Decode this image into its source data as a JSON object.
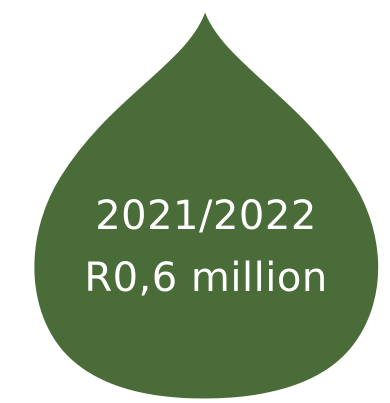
{
  "drop": {
    "fill_color": "#4a6c38",
    "stroke_color": "#ffffff",
    "text_color": "#ffffff",
    "line1": "2021/2022",
    "line2": "R0,6 million"
  }
}
